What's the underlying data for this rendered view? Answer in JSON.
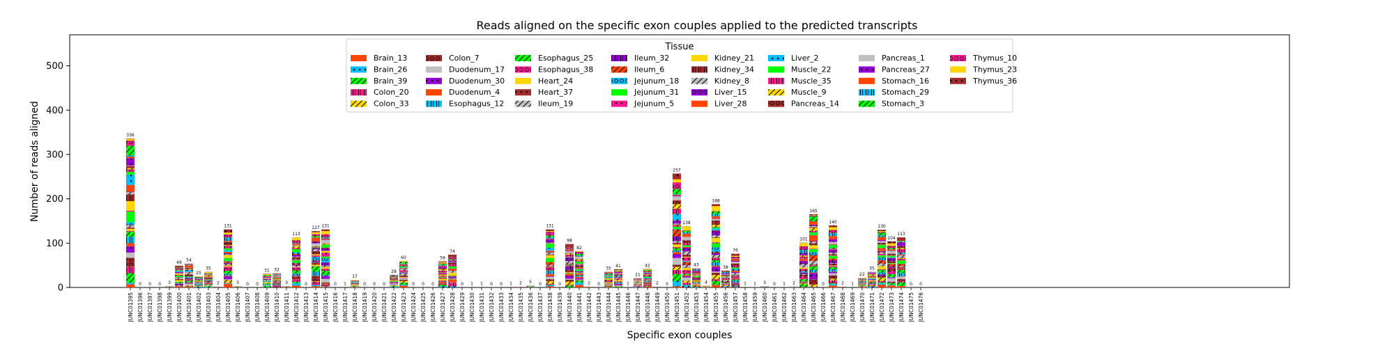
{
  "chart_data": {
    "type": "bar",
    "stacked": true,
    "title": "Reads aligned on the specific exon couples applied to the predicted transcripts",
    "xlabel": "Specific exon couples",
    "ylabel": "Number of reads aligned",
    "ylim": [
      0,
      570
    ],
    "yticks": [
      0,
      100,
      200,
      300,
      400,
      500
    ],
    "grid": false,
    "legend": {
      "title": "Tissue",
      "placement": "top-center",
      "columns": 8
    },
    "categories": [
      "JUNC01395",
      "JUNC01396",
      "JUNC01397",
      "JUNC01398",
      "JUNC01399",
      "JUNC01400",
      "JUNC01401",
      "JUNC01402",
      "JUNC01403",
      "JUNC01404",
      "JUNC01405",
      "JUNC01406",
      "JUNC01407",
      "JUNC01408",
      "JUNC01409",
      "JUNC01410",
      "JUNC01411",
      "JUNC01412",
      "JUNC01413",
      "JUNC01414",
      "JUNC01415",
      "JUNC01416",
      "JUNC01417",
      "JUNC01418",
      "JUNC01419",
      "JUNC01420",
      "JUNC01421",
      "JUNC01422",
      "JUNC01423",
      "JUNC01424",
      "JUNC01425",
      "JUNC01426",
      "JUNC01427",
      "JUNC01428",
      "JUNC01429",
      "JUNC01430",
      "JUNC01431",
      "JUNC01432",
      "JUNC01433",
      "JUNC01434",
      "JUNC01435",
      "JUNC01436",
      "JUNC01437",
      "JUNC01438",
      "JUNC01439",
      "JUNC01440",
      "JUNC01441",
      "JUNC01442",
      "JUNC01443",
      "JUNC01444",
      "JUNC01445",
      "JUNC01446",
      "JUNC01447",
      "JUNC01448",
      "JUNC01449",
      "JUNC01450",
      "JUNC01451",
      "JUNC01452",
      "JUNC01453",
      "JUNC01454",
      "JUNC01455",
      "JUNC01456",
      "JUNC01457",
      "JUNC01458",
      "JUNC01459",
      "JUNC01460",
      "JUNC01461",
      "JUNC01462",
      "JUNC01463",
      "JUNC01464",
      "JUNC01465",
      "JUNC01466",
      "JUNC01467",
      "JUNC01468",
      "JUNC01469",
      "JUNC01470",
      "JUNC01471",
      "JUNC01472",
      "JUNC01473",
      "JUNC01474",
      "JUNC01475",
      "JUNC01476"
    ],
    "totals": [
      336,
      0,
      0,
      0,
      3,
      49,
      54,
      25,
      35,
      2,
      131,
      3,
      0,
      0,
      31,
      32,
      3,
      113,
      0,
      127,
      131,
      0,
      1,
      17,
      0,
      0,
      0,
      28,
      60,
      0,
      0,
      0,
      59,
      74,
      0,
      1,
      1,
      0,
      0,
      1,
      2,
      5,
      0,
      131,
      0,
      98,
      82,
      2,
      0,
      35,
      41,
      1,
      21,
      42,
      2,
      0,
      257,
      138,
      43,
      4,
      188,
      38,
      76,
      1,
      1,
      3,
      0,
      1,
      2,
      101,
      165,
      0,
      140,
      2,
      1,
      22,
      35,
      130,
      104,
      113,
      0,
      0
    ],
    "series": [
      {
        "name": "Brain_13",
        "color": "#ff4500",
        "hatch": "none"
      },
      {
        "name": "Brain_26",
        "color": "#00bfff",
        "hatch": "dots"
      },
      {
        "name": "Brain_39",
        "color": "#00ff00",
        "hatch": "slash"
      },
      {
        "name": "Colon_20",
        "color": "#ff1493",
        "hatch": "vbars"
      },
      {
        "name": "Colon_33",
        "color": "#ffd700",
        "hatch": "slash"
      },
      {
        "name": "Colon_7",
        "color": "#a52a2a",
        "hatch": "circles"
      },
      {
        "name": "Duodenum_17",
        "color": "#c0c0c0",
        "hatch": "none"
      },
      {
        "name": "Duodenum_30",
        "color": "#9400d3",
        "hatch": "dots"
      },
      {
        "name": "Duodenum_4",
        "color": "#ff4500",
        "hatch": "none"
      },
      {
        "name": "Esophagus_12",
        "color": "#00bfff",
        "hatch": "vbars"
      },
      {
        "name": "Esophagus_25",
        "color": "#00ff00",
        "hatch": "slash"
      },
      {
        "name": "Esophagus_38",
        "color": "#ff1493",
        "hatch": "circles"
      },
      {
        "name": "Heart_24",
        "color": "#ffd700",
        "hatch": "none"
      },
      {
        "name": "Heart_37",
        "color": "#a52a2a",
        "hatch": "dots"
      },
      {
        "name": "Ileum_19",
        "color": "#c0c0c0",
        "hatch": "slash"
      },
      {
        "name": "Ileum_32",
        "color": "#9400d3",
        "hatch": "vbars"
      },
      {
        "name": "Ileum_6",
        "color": "#ff4500",
        "hatch": "slash"
      },
      {
        "name": "Jejunum_18",
        "color": "#00bfff",
        "hatch": "circles"
      },
      {
        "name": "Jejunum_31",
        "color": "#00ff00",
        "hatch": "none"
      },
      {
        "name": "Jejunum_5",
        "color": "#ff1493",
        "hatch": "dots"
      },
      {
        "name": "Kidney_21",
        "color": "#ffd700",
        "hatch": "none"
      },
      {
        "name": "Kidney_34",
        "color": "#a52a2a",
        "hatch": "vbars"
      },
      {
        "name": "Kidney_8",
        "color": "#c0c0c0",
        "hatch": "slash"
      },
      {
        "name": "Liver_15",
        "color": "#9400d3",
        "hatch": "circles"
      },
      {
        "name": "Liver_28",
        "color": "#ff4500",
        "hatch": "none"
      },
      {
        "name": "Liver_2",
        "color": "#00bfff",
        "hatch": "dots"
      },
      {
        "name": "Muscle_22",
        "color": "#00ff00",
        "hatch": "none"
      },
      {
        "name": "Muscle_35",
        "color": "#ff1493",
        "hatch": "vbars"
      },
      {
        "name": "Muscle_9",
        "color": "#ffd700",
        "hatch": "slash"
      },
      {
        "name": "Pancreas_14",
        "color": "#a52a2a",
        "hatch": "circles"
      },
      {
        "name": "Pancreas_1",
        "color": "#c0c0c0",
        "hatch": "none"
      },
      {
        "name": "Pancreas_27",
        "color": "#9400d3",
        "hatch": "dots"
      },
      {
        "name": "Stomach_16",
        "color": "#ff4500",
        "hatch": "none"
      },
      {
        "name": "Stomach_29",
        "color": "#00bfff",
        "hatch": "vbars"
      },
      {
        "name": "Stomach_3",
        "color": "#00ff00",
        "hatch": "slash"
      },
      {
        "name": "Thymus_10",
        "color": "#ff1493",
        "hatch": "circles"
      },
      {
        "name": "Thymus_23",
        "color": "#ffd700",
        "hatch": "none"
      },
      {
        "name": "Thymus_36",
        "color": "#a52a2a",
        "hatch": "dots"
      }
    ]
  }
}
